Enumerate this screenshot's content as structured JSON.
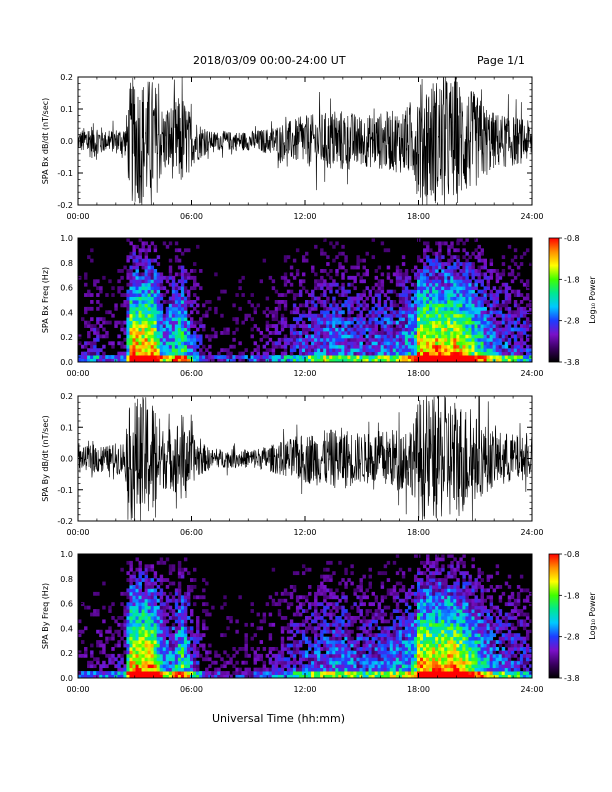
{
  "header": {
    "date_range": "2018/03/09  00:00-24:00 UT",
    "page": "Page 1/1"
  },
  "x_axis_title": "Universal Time (hh:mm)",
  "colorbar": {
    "label": "Log₁₀ Power",
    "ticks": [
      "-0.8",
      "-1.8",
      "-2.8",
      "-3.8"
    ],
    "stops": [
      "#000000",
      "#3a0060",
      "#7a10c8",
      "#1e3cff",
      "#00c8ff",
      "#00e890",
      "#40ff00",
      "#ffff00",
      "#ff9000",
      "#ff0000"
    ]
  },
  "chart_data": [
    {
      "type": "line",
      "panel": "bx-waveform",
      "ylabel": "SPA Bx dB/dt (nT/sec)",
      "xlim": [
        0,
        24
      ],
      "ylim": [
        -0.2,
        0.2
      ],
      "x_ticks": [
        "00:00",
        "06:00",
        "12:00",
        "18:00",
        "24:00"
      ],
      "y_ticks": [
        "0.2",
        "0.1",
        "0.0",
        "-0.1",
        "-0.2"
      ],
      "series": [
        {
          "x": [
            0,
            0.5,
            1,
            1.5,
            2,
            2.5,
            2.8,
            3,
            3.5,
            4,
            4.5,
            5,
            5.5,
            6,
            7,
            8,
            9,
            10,
            11,
            12,
            13,
            14,
            15,
            16,
            17,
            17.8,
            18,
            19,
            20,
            21,
            22,
            23,
            24
          ],
          "amplitude": [
            0.03,
            0.05,
            0.06,
            0.03,
            0.04,
            0.05,
            0.2,
            0.2,
            0.2,
            0.2,
            0.1,
            0.12,
            0.15,
            0.08,
            0.03,
            0.03,
            0.03,
            0.04,
            0.06,
            0.08,
            0.09,
            0.1,
            0.08,
            0.09,
            0.1,
            0.12,
            0.2,
            0.2,
            0.2,
            0.15,
            0.09,
            0.08,
            0.06
          ]
        }
      ]
    },
    {
      "type": "heatmap",
      "panel": "bx-spectrogram",
      "ylabel": "SPA Bx Freq (Hz)",
      "xlim": [
        0,
        24
      ],
      "ylim": [
        0,
        1.0
      ],
      "zlim": [
        -3.8,
        -0.8
      ],
      "x_ticks": [
        "00:00",
        "06:00",
        "12:00",
        "18:00",
        "24:00"
      ],
      "y_ticks": [
        "1.0",
        "0.8",
        "0.6",
        "0.4",
        "0.2",
        "0.0"
      ]
    },
    {
      "type": "line",
      "panel": "by-waveform",
      "ylabel": "SPA By dB/dt (nT/sec)",
      "xlim": [
        0,
        24
      ],
      "ylim": [
        -0.2,
        0.2
      ],
      "x_ticks": [
        "00:00",
        "06:00",
        "12:00",
        "18:00",
        "24:00"
      ],
      "y_ticks": [
        "0.2",
        "0.1",
        "0.0",
        "-0.1",
        "-0.2"
      ],
      "series": [
        {
          "x": [
            0,
            0.5,
            1,
            1.5,
            2,
            2.5,
            2.8,
            3,
            3.5,
            4,
            4.5,
            5,
            5.5,
            6,
            7,
            8,
            9,
            10,
            11,
            12,
            13,
            14,
            15,
            16,
            17,
            17.8,
            18,
            19,
            20,
            21,
            22,
            23,
            24
          ],
          "amplitude": [
            0.03,
            0.04,
            0.05,
            0.04,
            0.05,
            0.06,
            0.2,
            0.2,
            0.2,
            0.2,
            0.1,
            0.1,
            0.15,
            0.08,
            0.03,
            0.03,
            0.03,
            0.04,
            0.06,
            0.08,
            0.09,
            0.1,
            0.08,
            0.09,
            0.1,
            0.12,
            0.2,
            0.2,
            0.2,
            0.14,
            0.09,
            0.08,
            0.06
          ]
        }
      ]
    },
    {
      "type": "heatmap",
      "panel": "by-spectrogram",
      "ylabel": "SPA By Freq (Hz)",
      "xlim": [
        0,
        24
      ],
      "ylim": [
        0,
        1.0
      ],
      "zlim": [
        -3.8,
        -0.8
      ],
      "x_ticks": [
        "00:00",
        "06:00",
        "12:00",
        "18:00",
        "24:00"
      ],
      "y_ticks": [
        "1.0",
        "0.8",
        "0.6",
        "0.4",
        "0.2",
        "0.0"
      ]
    }
  ]
}
